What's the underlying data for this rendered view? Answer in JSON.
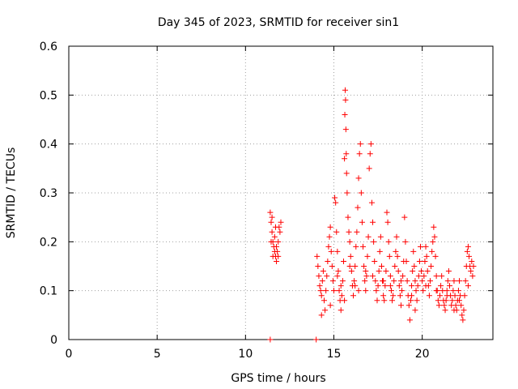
{
  "chart_data": {
    "type": "scatter",
    "title": "Day 345 of 2023, SRMTID for receiver sin1",
    "xlabel": "GPS time / hours",
    "ylabel": "SRMTID / TECUs",
    "xlim": [
      0,
      24
    ],
    "ylim": [
      0,
      0.6
    ],
    "x_ticks": [
      0,
      5,
      10,
      15,
      20
    ],
    "x_tick_labels": [
      "0",
      "5",
      "10",
      "15",
      "20"
    ],
    "y_ticks": [
      0,
      0.1,
      0.2,
      0.3,
      0.4,
      0.5,
      0.6
    ],
    "y_tick_labels": [
      "0",
      "0.1",
      "0.2",
      "0.3",
      "0.4",
      "0.5",
      "0.6"
    ],
    "grid": true,
    "marker": "plus",
    "color": "#ff0000",
    "series": [
      {
        "name": "sin1",
        "points": [
          [
            11.4,
            0.26
          ],
          [
            11.45,
            0.24
          ],
          [
            11.5,
            0.22
          ],
          [
            11.55,
            0.2
          ],
          [
            11.6,
            0.19
          ],
          [
            11.65,
            0.18
          ],
          [
            11.7,
            0.17
          ],
          [
            11.75,
            0.16
          ],
          [
            11.8,
            0.18
          ],
          [
            11.85,
            0.2
          ],
          [
            11.9,
            0.23
          ],
          [
            11.45,
            0.2
          ],
          [
            11.55,
            0.17
          ],
          [
            11.65,
            0.21
          ],
          [
            11.75,
            0.19
          ],
          [
            11.85,
            0.17
          ],
          [
            11.95,
            0.22
          ],
          [
            12.0,
            0.24
          ],
          [
            11.5,
            0.25
          ],
          [
            11.7,
            0.23
          ],
          [
            11.4,
            0.0
          ],
          [
            14.0,
            0.0
          ],
          [
            14.05,
            0.17
          ],
          [
            14.1,
            0.15
          ],
          [
            14.15,
            0.13
          ],
          [
            14.2,
            0.11
          ],
          [
            14.25,
            0.1
          ],
          [
            14.3,
            0.09
          ],
          [
            14.35,
            0.12
          ],
          [
            14.4,
            0.14
          ],
          [
            14.45,
            0.08
          ],
          [
            14.5,
            0.06
          ],
          [
            14.55,
            0.1
          ],
          [
            14.6,
            0.13
          ],
          [
            14.65,
            0.16
          ],
          [
            14.7,
            0.19
          ],
          [
            14.75,
            0.21
          ],
          [
            14.8,
            0.23
          ],
          [
            14.85,
            0.18
          ],
          [
            14.9,
            0.15
          ],
          [
            14.95,
            0.12
          ],
          [
            15.0,
            0.1
          ],
          [
            15.05,
            0.29
          ],
          [
            15.1,
            0.28
          ],
          [
            15.15,
            0.22
          ],
          [
            15.2,
            0.18
          ],
          [
            15.25,
            0.14
          ],
          [
            15.3,
            0.1
          ],
          [
            15.35,
            0.08
          ],
          [
            15.4,
            0.06
          ],
          [
            15.45,
            0.09
          ],
          [
            15.5,
            0.12
          ],
          [
            15.55,
            0.16
          ],
          [
            15.6,
            0.37
          ],
          [
            15.62,
            0.46
          ],
          [
            15.64,
            0.51
          ],
          [
            15.66,
            0.49
          ],
          [
            15.68,
            0.43
          ],
          [
            15.7,
            0.38
          ],
          [
            15.72,
            0.34
          ],
          [
            15.75,
            0.3
          ],
          [
            15.8,
            0.25
          ],
          [
            15.85,
            0.22
          ],
          [
            15.9,
            0.2
          ],
          [
            15.95,
            0.17
          ],
          [
            16.0,
            0.14
          ],
          [
            16.05,
            0.11
          ],
          [
            16.1,
            0.09
          ],
          [
            16.15,
            0.12
          ],
          [
            16.2,
            0.15
          ],
          [
            16.25,
            0.19
          ],
          [
            16.3,
            0.22
          ],
          [
            16.35,
            0.27
          ],
          [
            16.4,
            0.33
          ],
          [
            16.45,
            0.38
          ],
          [
            16.5,
            0.4
          ],
          [
            16.55,
            0.3
          ],
          [
            16.6,
            0.24
          ],
          [
            16.65,
            0.19
          ],
          [
            16.7,
            0.15
          ],
          [
            16.75,
            0.12
          ],
          [
            16.8,
            0.1
          ],
          [
            16.85,
            0.13
          ],
          [
            16.9,
            0.17
          ],
          [
            16.95,
            0.21
          ],
          [
            17.0,
            0.35
          ],
          [
            17.05,
            0.38
          ],
          [
            17.1,
            0.4
          ],
          [
            17.15,
            0.28
          ],
          [
            17.2,
            0.24
          ],
          [
            17.25,
            0.2
          ],
          [
            17.3,
            0.16
          ],
          [
            17.35,
            0.12
          ],
          [
            17.4,
            0.1
          ],
          [
            17.45,
            0.08
          ],
          [
            17.5,
            0.11
          ],
          [
            17.55,
            0.14
          ],
          [
            17.6,
            0.18
          ],
          [
            17.65,
            0.21
          ],
          [
            17.7,
            0.15
          ],
          [
            17.75,
            0.12
          ],
          [
            17.8,
            0.09
          ],
          [
            17.85,
            0.08
          ],
          [
            17.9,
            0.11
          ],
          [
            17.95,
            0.14
          ],
          [
            18.0,
            0.26
          ],
          [
            18.05,
            0.24
          ],
          [
            18.1,
            0.2
          ],
          [
            18.15,
            0.17
          ],
          [
            18.2,
            0.13
          ],
          [
            18.25,
            0.1
          ],
          [
            18.3,
            0.08
          ],
          [
            18.35,
            0.09
          ],
          [
            18.4,
            0.12
          ],
          [
            18.45,
            0.15
          ],
          [
            18.5,
            0.18
          ],
          [
            18.55,
            0.21
          ],
          [
            18.6,
            0.17
          ],
          [
            18.65,
            0.14
          ],
          [
            18.7,
            0.11
          ],
          [
            18.75,
            0.09
          ],
          [
            18.8,
            0.07
          ],
          [
            18.85,
            0.1
          ],
          [
            18.9,
            0.13
          ],
          [
            18.95,
            0.16
          ],
          [
            19.0,
            0.25
          ],
          [
            19.05,
            0.2
          ],
          [
            19.1,
            0.16
          ],
          [
            19.15,
            0.12
          ],
          [
            19.2,
            0.09
          ],
          [
            19.25,
            0.07
          ],
          [
            19.3,
            0.04
          ],
          [
            19.35,
            0.08
          ],
          [
            19.4,
            0.11
          ],
          [
            19.45,
            0.14
          ],
          [
            19.5,
            0.18
          ],
          [
            19.55,
            0.15
          ],
          [
            19.6,
            0.12
          ],
          [
            19.65,
            0.1
          ],
          [
            19.7,
            0.08
          ],
          [
            19.75,
            0.11
          ],
          [
            19.8,
            0.13
          ],
          [
            19.85,
            0.16
          ],
          [
            19.9,
            0.19
          ],
          [
            19.95,
            0.14
          ],
          [
            20.0,
            0.12
          ],
          [
            20.05,
            0.1
          ],
          [
            20.1,
            0.13
          ],
          [
            20.15,
            0.16
          ],
          [
            20.2,
            0.19
          ],
          [
            20.25,
            0.17
          ],
          [
            20.3,
            0.14
          ],
          [
            20.35,
            0.11
          ],
          [
            20.4,
            0.09
          ],
          [
            20.45,
            0.12
          ],
          [
            20.5,
            0.15
          ],
          [
            20.55,
            0.18
          ],
          [
            20.6,
            0.2
          ],
          [
            20.65,
            0.23
          ],
          [
            20.7,
            0.21
          ],
          [
            20.75,
            0.17
          ],
          [
            20.8,
            0.13
          ],
          [
            20.85,
            0.1
          ],
          [
            20.9,
            0.08
          ],
          [
            20.95,
            0.07
          ],
          [
            21.0,
            0.09
          ],
          [
            21.05,
            0.11
          ],
          [
            21.1,
            0.13
          ],
          [
            21.15,
            0.1
          ],
          [
            21.2,
            0.08
          ],
          [
            21.25,
            0.07
          ],
          [
            21.3,
            0.06
          ],
          [
            21.35,
            0.08
          ],
          [
            21.4,
            0.1
          ],
          [
            21.45,
            0.12
          ],
          [
            21.5,
            0.14
          ],
          [
            21.55,
            0.11
          ],
          [
            21.6,
            0.09
          ],
          [
            21.65,
            0.07
          ],
          [
            21.7,
            0.08
          ],
          [
            21.75,
            0.1
          ],
          [
            21.8,
            0.12
          ],
          [
            21.85,
            0.09
          ],
          [
            21.9,
            0.07
          ],
          [
            21.95,
            0.06
          ],
          [
            22.0,
            0.08
          ],
          [
            22.05,
            0.1
          ],
          [
            22.1,
            0.12
          ],
          [
            22.15,
            0.09
          ],
          [
            22.2,
            0.07
          ],
          [
            22.25,
            0.05
          ],
          [
            22.3,
            0.04
          ],
          [
            22.35,
            0.06
          ],
          [
            22.4,
            0.09
          ],
          [
            22.45,
            0.12
          ],
          [
            22.5,
            0.15
          ],
          [
            22.55,
            0.18
          ],
          [
            22.6,
            0.19
          ],
          [
            22.65,
            0.17
          ],
          [
            22.7,
            0.15
          ],
          [
            22.75,
            0.14
          ],
          [
            22.8,
            0.16
          ],
          [
            22.85,
            0.13
          ],
          [
            22.9,
            0.15
          ],
          [
            15.2,
            0.13
          ],
          [
            15.4,
            0.11
          ],
          [
            15.9,
            0.15
          ],
          [
            16.2,
            0.11
          ],
          [
            16.8,
            0.14
          ],
          [
            17.2,
            0.13
          ],
          [
            18.2,
            0.11
          ],
          [
            18.8,
            0.12
          ],
          [
            19.4,
            0.09
          ],
          [
            20.2,
            0.11
          ],
          [
            20.8,
            0.1
          ],
          [
            21.4,
            0.09
          ],
          [
            22.1,
            0.08
          ],
          [
            22.6,
            0.11
          ],
          [
            14.3,
            0.05
          ],
          [
            14.8,
            0.07
          ],
          [
            15.6,
            0.08
          ],
          [
            16.4,
            0.1
          ],
          [
            17.8,
            0.12
          ],
          [
            19.6,
            0.06
          ],
          [
            21.8,
            0.06
          ]
        ]
      }
    ]
  }
}
